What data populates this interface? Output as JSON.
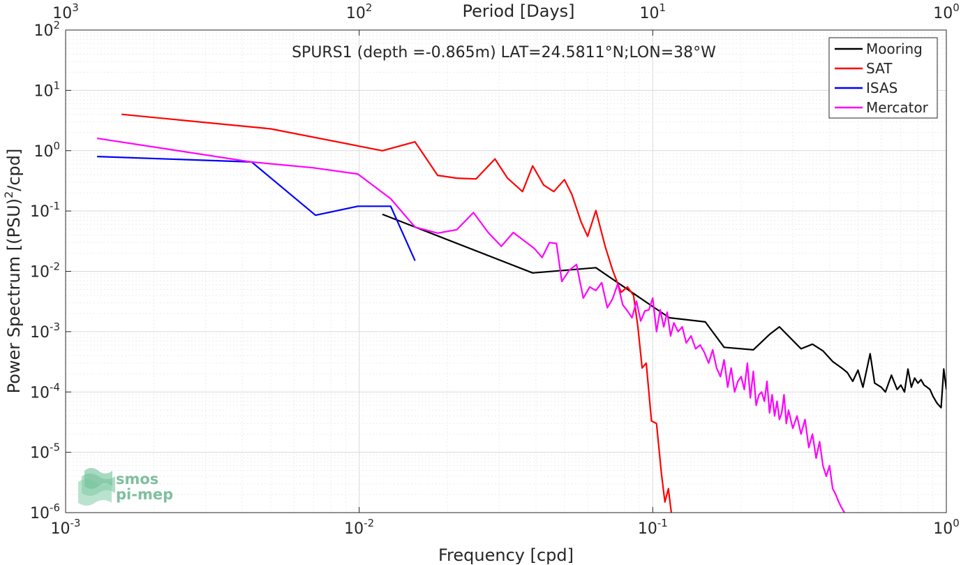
{
  "chart_data": {
    "type": "line",
    "title": "SPURS1 (depth =-0.865m) LAT=24.5811°N;LON=38°W",
    "xlabel": "Frequency [cpd]",
    "ylabel": "Power Spectrum [(PSU)",
    "ylabel_sup": "2",
    "ylabel_tail": "/cpd]",
    "top_xlabel": "Period [Days]",
    "x_scale": "log",
    "y_scale": "log",
    "xlim": [
      0.001,
      1
    ],
    "ylim": [
      1e-06,
      100
    ],
    "grid": true,
    "minor_grid": true,
    "legend_position": "top-right",
    "x_ticks": [
      {
        "value": 0.001,
        "base": "10",
        "exp": "-3"
      },
      {
        "value": 0.01,
        "base": "10",
        "exp": "-2"
      },
      {
        "value": 0.1,
        "base": "10",
        "exp": "-1"
      },
      {
        "value": 1,
        "base": "10",
        "exp": "0"
      }
    ],
    "y_ticks": [
      {
        "value": 1e-06,
        "base": "10",
        "exp": "-6"
      },
      {
        "value": 1e-05,
        "base": "10",
        "exp": "-5"
      },
      {
        "value": 0.0001,
        "base": "10",
        "exp": "-4"
      },
      {
        "value": 0.001,
        "base": "10",
        "exp": "-3"
      },
      {
        "value": 0.01,
        "base": "10",
        "exp": "-2"
      },
      {
        "value": 0.1,
        "base": "10",
        "exp": "-1"
      },
      {
        "value": 1,
        "base": "10",
        "exp": "0"
      },
      {
        "value": 10,
        "base": "10",
        "exp": "1"
      },
      {
        "value": 100,
        "base": "10",
        "exp": "2"
      }
    ],
    "top_ticks": [
      {
        "value": 0.001,
        "base": "10",
        "exp": "3"
      },
      {
        "value": 0.01,
        "base": "10",
        "exp": "2"
      },
      {
        "value": 0.1,
        "base": "10",
        "exp": "1"
      },
      {
        "value": 1,
        "base": "10",
        "exp": "0"
      }
    ],
    "series": [
      {
        "name": "Mooring",
        "color": "#000000",
        "points": [
          [
            0.012,
            0.088
          ],
          [
            0.039,
            0.0094
          ],
          [
            0.064,
            0.0115
          ],
          [
            0.1,
            0.0026
          ],
          [
            0.114,
            0.0017
          ],
          [
            0.151,
            0.00145
          ],
          [
            0.175,
            0.00055
          ],
          [
            0.22,
            0.0005
          ],
          [
            0.25,
            0.0009
          ],
          [
            0.27,
            0.0012
          ],
          [
            0.32,
            0.00052
          ],
          [
            0.35,
            0.00062
          ],
          [
            0.38,
            0.00048
          ],
          [
            0.41,
            0.00032
          ],
          [
            0.44,
            0.00025
          ],
          [
            0.46,
            0.00021
          ],
          [
            0.48,
            0.00015
          ],
          [
            0.5,
            0.00023
          ],
          [
            0.52,
            0.00012
          ],
          [
            0.55,
            0.00043
          ],
          [
            0.57,
            0.00014
          ],
          [
            0.6,
            0.00012
          ],
          [
            0.62,
            0.0001
          ],
          [
            0.65,
            0.00019
          ],
          [
            0.68,
            0.00011
          ],
          [
            0.7,
            0.00013
          ],
          [
            0.72,
            0.0001
          ],
          [
            0.74,
            0.00024
          ],
          [
            0.76,
            0.00012
          ],
          [
            0.78,
            0.00017
          ],
          [
            0.8,
            0.00014
          ],
          [
            0.82,
            0.00016
          ],
          [
            0.84,
            0.00013
          ],
          [
            0.86,
            0.00012
          ],
          [
            0.88,
            0.00011
          ],
          [
            0.9,
            8.5e-05
          ],
          [
            0.93,
            6.5e-05
          ],
          [
            0.96,
            5.5e-05
          ],
          [
            0.98,
            0.00024
          ],
          [
            1.0,
            0.00011
          ]
        ]
      },
      {
        "name": "SAT",
        "color": "#ff0000",
        "points": [
          [
            0.00155,
            4.0
          ],
          [
            0.005,
            2.3
          ],
          [
            0.012,
            1.0
          ],
          [
            0.0155,
            1.4
          ],
          [
            0.0185,
            0.39
          ],
          [
            0.0215,
            0.35
          ],
          [
            0.025,
            0.34
          ],
          [
            0.029,
            0.73
          ],
          [
            0.032,
            0.35
          ],
          [
            0.036,
            0.21
          ],
          [
            0.039,
            0.56
          ],
          [
            0.0425,
            0.27
          ],
          [
            0.046,
            0.21
          ],
          [
            0.05,
            0.33
          ],
          [
            0.053,
            0.19
          ],
          [
            0.057,
            0.066
          ],
          [
            0.06,
            0.038
          ],
          [
            0.064,
            0.102
          ],
          [
            0.069,
            0.025
          ],
          [
            0.073,
            0.0105
          ],
          [
            0.078,
            0.0045
          ],
          [
            0.082,
            0.0055
          ],
          [
            0.086,
            0.004
          ],
          [
            0.089,
            0.0012
          ],
          [
            0.092,
            0.00025
          ],
          [
            0.095,
            0.0003
          ],
          [
            0.099,
            3.3e-05
          ],
          [
            0.103,
            3e-05
          ],
          [
            0.107,
            4.5e-06
          ],
          [
            0.11,
            1.5e-06
          ],
          [
            0.113,
            2.5e-06
          ],
          [
            0.116,
            6e-07
          ]
        ]
      },
      {
        "name": "ISAS",
        "color": "#0000ff",
        "points": [
          [
            0.00128,
            0.8
          ],
          [
            0.0043,
            0.65
          ],
          [
            0.0071,
            0.085
          ],
          [
            0.0099,
            0.12
          ],
          [
            0.0128,
            0.12
          ],
          [
            0.0155,
            0.015
          ]
        ]
      },
      {
        "name": "Mercator",
        "color": "#ff00ff",
        "points": [
          [
            0.00128,
            1.6
          ],
          [
            0.0043,
            0.65
          ],
          [
            0.007,
            0.52
          ],
          [
            0.0099,
            0.41
          ],
          [
            0.0128,
            0.16
          ],
          [
            0.0155,
            0.054
          ],
          [
            0.0185,
            0.043
          ],
          [
            0.0215,
            0.049
          ],
          [
            0.0245,
            0.094
          ],
          [
            0.0275,
            0.044
          ],
          [
            0.0305,
            0.026
          ],
          [
            0.0335,
            0.044
          ],
          [
            0.0365,
            0.032
          ],
          [
            0.0395,
            0.024
          ],
          [
            0.042,
            0.017
          ],
          [
            0.0445,
            0.03
          ],
          [
            0.047,
            0.029
          ],
          [
            0.049,
            0.0068
          ],
          [
            0.052,
            0.0105
          ],
          [
            0.055,
            0.013
          ],
          [
            0.058,
            0.0036
          ],
          [
            0.061,
            0.0055
          ],
          [
            0.064,
            0.0048
          ],
          [
            0.067,
            0.0065
          ],
          [
            0.07,
            0.0025
          ],
          [
            0.073,
            0.0035
          ],
          [
            0.076,
            0.0062
          ],
          [
            0.079,
            0.0028
          ],
          [
            0.082,
            0.0022
          ],
          [
            0.085,
            0.0017
          ],
          [
            0.088,
            0.0032
          ],
          [
            0.091,
            0.0015
          ],
          [
            0.094,
            0.0022
          ],
          [
            0.097,
            0.0023
          ],
          [
            0.1,
            0.0036
          ],
          [
            0.103,
            0.001
          ],
          [
            0.106,
            0.0023
          ],
          [
            0.109,
            0.0012
          ],
          [
            0.112,
            0.0021
          ],
          [
            0.115,
            0.00085
          ],
          [
            0.118,
            0.0014
          ],
          [
            0.122,
            0.001
          ],
          [
            0.126,
            0.0012
          ],
          [
            0.13,
            0.00065
          ],
          [
            0.135,
            0.00085
          ],
          [
            0.14,
            0.00052
          ],
          [
            0.145,
            0.0006
          ],
          [
            0.15,
            0.00045
          ],
          [
            0.155,
            0.0003
          ],
          [
            0.16,
            0.0005
          ],
          [
            0.165,
            0.00025
          ],
          [
            0.17,
            0.00018
          ],
          [
            0.175,
            0.00034
          ],
          [
            0.18,
            0.00012
          ],
          [
            0.185,
            0.00025
          ],
          [
            0.19,
            0.0001
          ],
          [
            0.195,
            0.00015
          ],
          [
            0.2,
            0.00018
          ],
          [
            0.205,
            0.00011
          ],
          [
            0.21,
            0.0003
          ],
          [
            0.215,
            8e-05
          ],
          [
            0.22,
            0.00022
          ],
          [
            0.225,
            6e-05
          ],
          [
            0.23,
            9e-05
          ],
          [
            0.235,
            0.0001
          ],
          [
            0.24,
            7e-05
          ],
          [
            0.245,
            0.00015
          ],
          [
            0.25,
            4.5e-05
          ],
          [
            0.255,
            9e-05
          ],
          [
            0.26,
            4e-05
          ],
          [
            0.265,
            7e-05
          ],
          [
            0.27,
            3.5e-05
          ],
          [
            0.275,
            4.5e-05
          ],
          [
            0.28,
            9e-05
          ],
          [
            0.285,
            3e-05
          ],
          [
            0.29,
            5e-05
          ],
          [
            0.3,
            2.5e-05
          ],
          [
            0.31,
            4e-05
          ],
          [
            0.32,
            2e-05
          ],
          [
            0.33,
            3.5e-05
          ],
          [
            0.34,
            1.2e-05
          ],
          [
            0.35,
            2e-05
          ],
          [
            0.36,
            8e-06
          ],
          [
            0.37,
            1.5e-05
          ],
          [
            0.38,
            6e-06
          ],
          [
            0.39,
            4e-06
          ],
          [
            0.4,
            6e-06
          ],
          [
            0.41,
            2.5e-06
          ],
          [
            0.42,
            2e-06
          ],
          [
            0.43,
            1.5e-06
          ],
          [
            0.44,
            1.2e-06
          ],
          [
            0.45,
            1e-06
          ]
        ]
      }
    ]
  },
  "watermark": {
    "line1": "smos",
    "line2": "pi-mep",
    "color": "#7fbf9f"
  }
}
